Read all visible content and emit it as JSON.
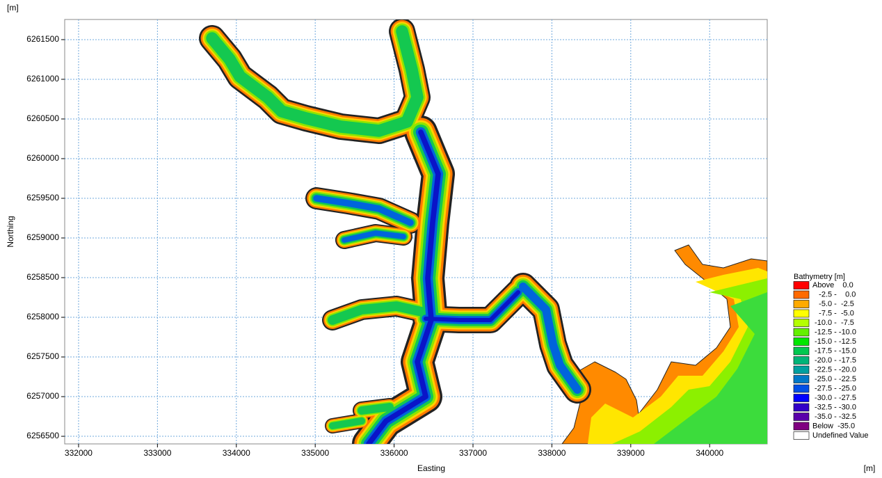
{
  "map": {
    "y_unit": "[m]",
    "x_unit": "[m]",
    "x_axis": {
      "label": "Easting",
      "lim": [
        331824,
        340730
      ],
      "ticks": [
        332000,
        333000,
        334000,
        335000,
        336000,
        337000,
        338000,
        339000,
        340000
      ]
    },
    "y_axis": {
      "label": "Northing",
      "lim": [
        6256404,
        6261754
      ],
      "ticks": [
        6256500,
        6257000,
        6257500,
        6258000,
        6258500,
        6259000,
        6259500,
        6260000,
        6260500,
        6261000,
        6261500
      ]
    },
    "grid": true,
    "legend": {
      "title": "Bathymetry [m]",
      "entries": [
        {
          "label": "Above    0.0",
          "color": "#ff0000"
        },
        {
          "label": "   -2.5 -    0.0",
          "color": "#ff6a00"
        },
        {
          "label": "   -5.0 -  -2.5",
          "color": "#ffaa00"
        },
        {
          "label": "   -7.5 -  -5.0",
          "color": "#ffff00"
        },
        {
          "label": " -10.0 -  -7.5",
          "color": "#b4ff00"
        },
        {
          "label": " -12.5 - -10.0",
          "color": "#64f000"
        },
        {
          "label": " -15.0 - -12.5",
          "color": "#00e600"
        },
        {
          "label": " -17.5 - -15.0",
          "color": "#00c850"
        },
        {
          "label": " -20.0 - -17.5",
          "color": "#00b478"
        },
        {
          "label": " -22.5 - -20.0",
          "color": "#00a0a0"
        },
        {
          "label": " -25.0 - -22.5",
          "color": "#0078c8"
        },
        {
          "label": " -27.5 - -25.0",
          "color": "#0050e6"
        },
        {
          "label": " -30.0 - -27.5",
          "color": "#0000ff"
        },
        {
          "label": " -32.5 - -30.0",
          "color": "#3200c8"
        },
        {
          "label": " -35.0 - -32.5",
          "color": "#5a00aa"
        },
        {
          "label": "Below  -35.0",
          "color": "#800080"
        },
        {
          "label": "Undefined Value",
          "color": "#ffffff"
        }
      ]
    }
  }
}
